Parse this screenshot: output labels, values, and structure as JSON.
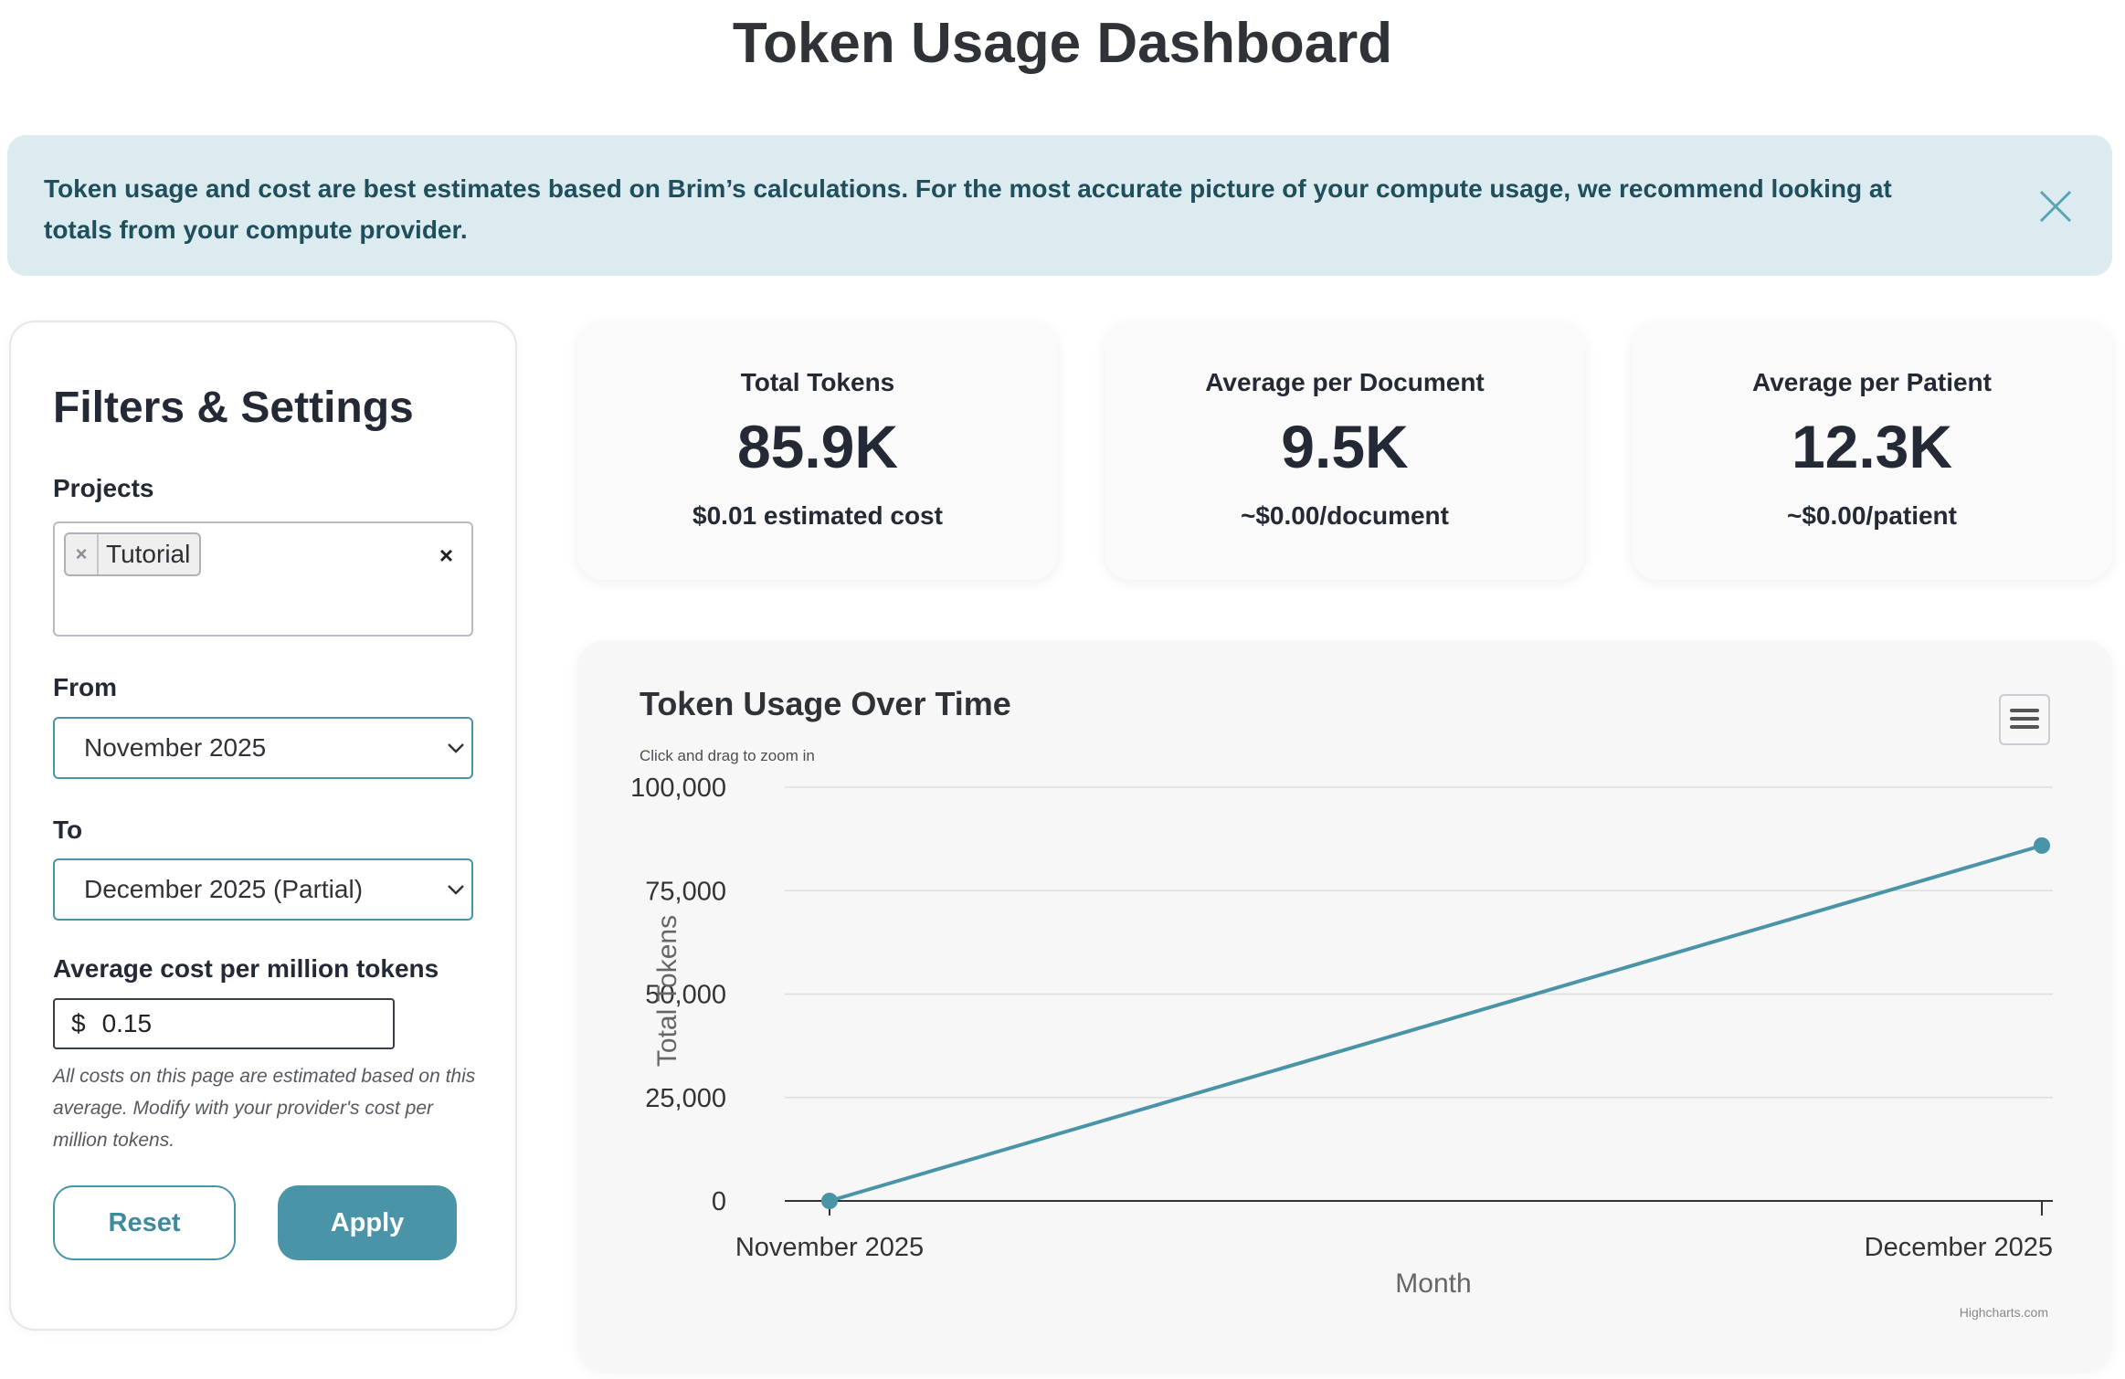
{
  "page": {
    "title": "Token Usage Dashboard"
  },
  "banner": {
    "text": "Token usage and cost are best estimates based on Brim’s calculations. For the most accurate picture of your compute usage, we recommend looking at totals from your compute provider.",
    "close_icon": "close-icon"
  },
  "sidebar": {
    "title": "Filters & Settings",
    "projects_label": "Projects",
    "projects": [
      {
        "label": "Tutorial",
        "remove_glyph": "×"
      }
    ],
    "projects_clear_glyph": "×",
    "from_label": "From",
    "from_value": "November 2025",
    "to_label": "To",
    "to_value": "December 2025 (Partial)",
    "cost_label": "Average cost per million tokens",
    "cost_prefix": "$",
    "cost_value": "0.15",
    "help_text": "All costs on this page are estimated based on this average. Modify with your provider's cost per million tokens.",
    "reset_label": "Reset",
    "apply_label": "Apply"
  },
  "cards": [
    {
      "label": "Total Tokens",
      "value": "85.9K",
      "sub": "$0.01 estimated cost"
    },
    {
      "label": "Average per Document",
      "value": "9.5K",
      "sub": "~$0.00/document"
    },
    {
      "label": "Average per Patient",
      "value": "12.3K",
      "sub": "~$0.00/patient"
    }
  ],
  "chart_panel": {
    "menu_icon": "hamburger-menu-icon",
    "credit": "Highcharts.com"
  },
  "chart_data": {
    "type": "line",
    "title": "Token Usage Over Time",
    "subtitle": "Click and drag to zoom in",
    "xlabel": "Month",
    "ylabel": "Total Tokens",
    "categories": [
      "November 2025",
      "December 2025"
    ],
    "y_ticks": [
      "0",
      "25,000",
      "50,000",
      "75,000",
      "100,000"
    ],
    "ylim": [
      0,
      100000
    ],
    "grid": true,
    "legend": "none",
    "series": [
      {
        "values": [
          0,
          85900
        ]
      }
    ],
    "color": "#4a94a8"
  },
  "colors": {
    "accent": "#4a94a8",
    "banner_bg": "#dcebf0",
    "banner_text": "#1f4f5c"
  }
}
